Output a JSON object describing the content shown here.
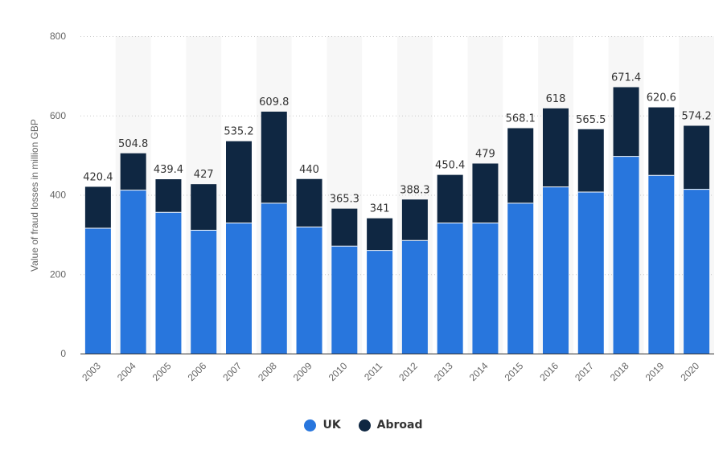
{
  "chart_data": {
    "type": "bar",
    "stacked": true,
    "title": "",
    "xlabel": "",
    "ylabel": "Value of fraud losses in million GBP",
    "ylim": [
      0,
      800
    ],
    "yticks": [
      0,
      200,
      400,
      600,
      800
    ],
    "categories": [
      "2003",
      "2004",
      "2005",
      "2006",
      "2007",
      "2008",
      "2009",
      "2010",
      "2011",
      "2012",
      "2013",
      "2014",
      "2015",
      "2016",
      "2017",
      "2018",
      "2019",
      "2020"
    ],
    "series": [
      {
        "name": "UK",
        "color": "#2876dd",
        "values": [
          316,
          412,
          356,
          311,
          329,
          379,
          319,
          271,
          260,
          285,
          329,
          329,
          379,
          420,
          407,
          497,
          449,
          414
        ]
      },
      {
        "name": "Abroad",
        "color": "#0f2742",
        "values": [
          104.4,
          92.8,
          83.4,
          116,
          206.2,
          230.8,
          121,
          94.3,
          81,
          103.3,
          121.4,
          150,
          189.1,
          198,
          158.5,
          174.4,
          171.6,
          160.2
        ]
      }
    ],
    "total_labels": [
      "420.4",
      "504.8",
      "439.4",
      "427",
      "535.2",
      "609.8",
      "440",
      "365.3",
      "341",
      "388.3",
      "450.4",
      "479",
      "568.1",
      "618",
      "565.5",
      "671.4",
      "620.6",
      "574.2"
    ],
    "grid": true,
    "legend_position": "bottom-center"
  }
}
